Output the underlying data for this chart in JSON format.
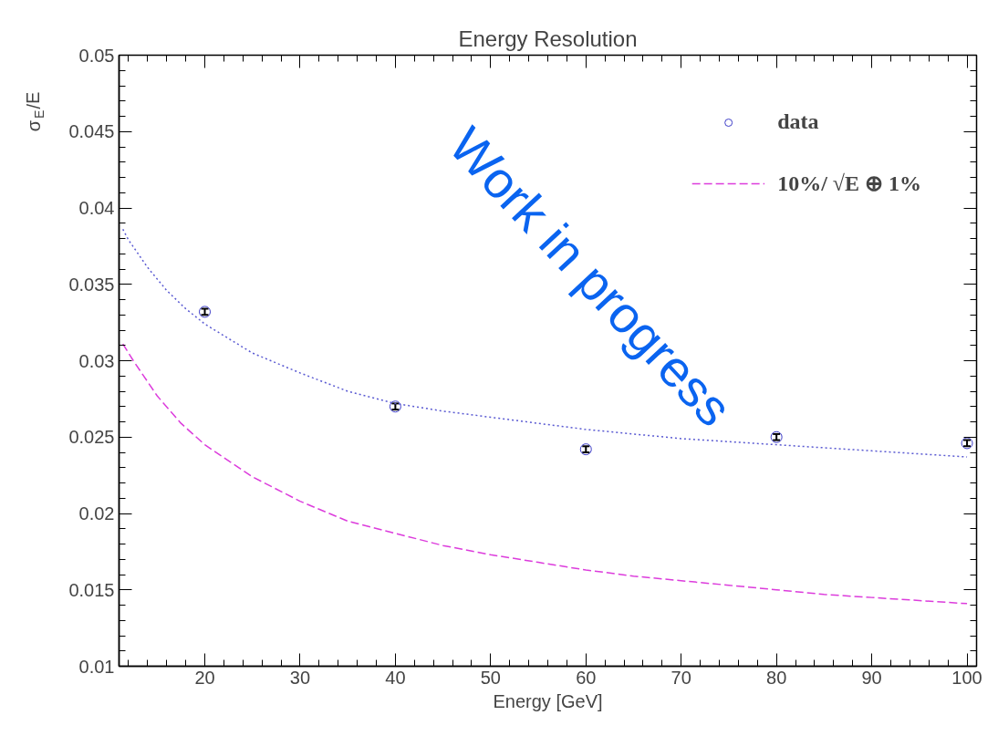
{
  "chart_data": {
    "type": "scatter",
    "title": "Energy Resolution",
    "xlabel": "Energy [GeV]",
    "ylabel": "σ$_{E}$/E",
    "annotations": [
      "Work in progress"
    ],
    "xlim": [
      11,
      101
    ],
    "xticks": [
      20,
      30,
      40,
      50,
      60,
      70,
      80,
      90,
      100
    ],
    "ylim": [
      0.01,
      0.05
    ],
    "yticks": [
      0.01,
      0.015,
      0.02,
      0.025,
      0.03,
      0.035,
      0.04,
      0.045,
      0.05
    ],
    "grid": false,
    "legend": "top right",
    "marker": "circle",
    "series": [
      {
        "name": "data",
        "type": "scatter",
        "color": "#3c3cc8",
        "x": [
          20,
          40,
          60,
          80,
          100
        ],
        "values": [
          0.0332,
          0.027,
          0.0242,
          0.025,
          0.0246
        ],
        "errors": [
          0.0002,
          0.0002,
          0.0002,
          0.0002,
          0.0002
        ]
      },
      {
        "type": "line",
        "color": "#5a5ad2",
        "line_style": "dotted",
        "marker": "none",
        "x": [
          11.4,
          12,
          14,
          16,
          18,
          20,
          25,
          30,
          35,
          40,
          45,
          50,
          55,
          60,
          65,
          70,
          75,
          80,
          85,
          90,
          95,
          100
        ],
        "values": [
          0.0386,
          0.0379,
          0.0361,
          0.0346,
          0.0334,
          0.0324,
          0.0305,
          0.0292,
          0.028,
          0.0272,
          0.0267,
          0.0263,
          0.0259,
          0.0255,
          0.0252,
          0.0249,
          0.0247,
          0.0245,
          0.0243,
          0.0241,
          0.0239,
          0.0237
        ]
      },
      {
        "name": "10%/ √E ⊕ 1%",
        "type": "line",
        "color": "#dc3cdc",
        "line_style": "dashed",
        "marker": "none",
        "x": [
          11.4,
          12.5,
          15,
          17.5,
          20,
          25,
          30,
          35,
          40,
          45,
          50,
          55,
          60,
          65,
          70,
          75,
          80,
          85,
          90,
          95,
          100
        ],
        "values": [
          0.0311,
          0.03,
          0.0277,
          0.0259,
          0.0245,
          0.0224,
          0.0208,
          0.0195,
          0.0187,
          0.0179,
          0.0173,
          0.0168,
          0.0163,
          0.0159,
          0.0156,
          0.0153,
          0.015,
          0.0147,
          0.0145,
          0.0143,
          0.0141
        ]
      }
    ]
  }
}
